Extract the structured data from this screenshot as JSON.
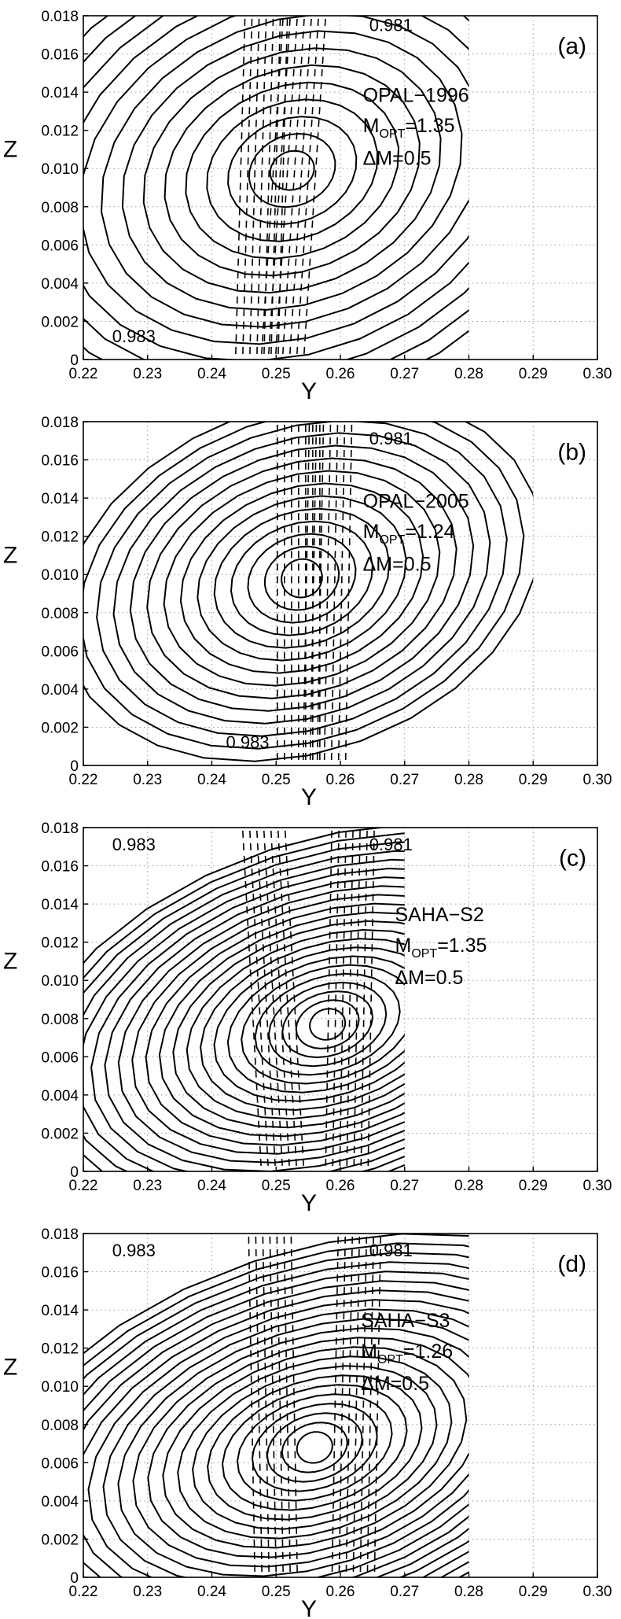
{
  "chart_data": [
    {
      "type": "line",
      "panel_letter": "(a)",
      "model": "OPAL−1996",
      "m_opt_symbol": "M",
      "m_opt_subscript": "OPT",
      "m_opt_value": "=1.35",
      "delta_m": "ΔM=0.5",
      "xlabel": "Y",
      "ylabel": "Z",
      "xlim": [
        0.22,
        0.3
      ],
      "ylim": [
        0,
        0.018
      ],
      "grid": true,
      "x_ticks": [
        "0.22",
        "0.23",
        "0.24",
        "0.25",
        "0.26",
        "0.27",
        "0.28",
        "0.29",
        "0.30"
      ],
      "y_ticks": [
        "0",
        "0.002",
        "0.004",
        "0.006",
        "0.008",
        "0.010",
        "0.012",
        "0.014",
        "0.016",
        "0.018"
      ],
      "contour_region_x": [
        0.22,
        0.28
      ],
      "contours": {
        "center": [
          0.2525,
          0.0099
        ],
        "rotation_deg": -22,
        "count": 14,
        "a_min": 0.0035,
        "a_step": 0.0034,
        "b_min": 0.001,
        "b_step": 0.00085
      },
      "dashed_isolines": [
        {
          "label": "0.981",
          "label_pos": [
            0.2645,
            0.0172
          ],
          "top": [
            0.2545,
            0.0185
          ],
          "bottom": [
            0.251,
            0.0
          ]
        },
        {
          "label": "0.983",
          "label_pos": [
            0.2245,
            0.0009
          ],
          "top": [
            0.2485,
            0.0185
          ],
          "bottom": [
            0.247,
            0.0
          ]
        }
      ]
    },
    {
      "type": "line",
      "panel_letter": "(b)",
      "model": "OPAL−2005",
      "m_opt_symbol": "M",
      "m_opt_subscript": "OPT",
      "m_opt_value": "=1.24",
      "delta_m": "ΔM=0.5",
      "xlabel": "Y",
      "ylabel": "Z",
      "xlim": [
        0.22,
        0.3
      ],
      "ylim": [
        0,
        0.018
      ],
      "grid": true,
      "x_ticks": [
        "0.22",
        "0.23",
        "0.24",
        "0.25",
        "0.26",
        "0.27",
        "0.28",
        "0.29",
        "0.30"
      ],
      "y_ticks": [
        "0",
        "0.002",
        "0.004",
        "0.006",
        "0.008",
        "0.010",
        "0.012",
        "0.014",
        "0.016",
        "0.018"
      ],
      "contour_region_x": [
        0.22,
        0.29
      ],
      "contours": {
        "center": [
          0.254,
          0.0098
        ],
        "rotation_deg": -20,
        "count": 14,
        "a_min": 0.0032,
        "a_step": 0.0027,
        "b_min": 0.001,
        "b_step": 0.00062
      },
      "dashed_isolines": [
        {
          "label": "0.981",
          "label_pos": [
            0.2645,
            0.0168
          ],
          "top": [
            0.2585,
            0.0185
          ],
          "bottom": [
            0.2575,
            0.0
          ]
        },
        {
          "label": "0.983",
          "label_pos": [
            0.2422,
            0.0009
          ],
          "top": [
            0.2535,
            0.0185
          ],
          "bottom": [
            0.2535,
            0.0
          ]
        }
      ]
    },
    {
      "type": "line",
      "panel_letter": "(c)",
      "model": "SAHA−S2",
      "m_opt_symbol": "M",
      "m_opt_subscript": "OPT",
      "m_opt_value": "=1.35",
      "delta_m": "ΔM=0.5",
      "xlabel": "Y",
      "ylabel": "Z",
      "xlim": [
        0.22,
        0.3
      ],
      "ylim": [
        0,
        0.018
      ],
      "grid": true,
      "x_ticks": [
        "0.22",
        "0.23",
        "0.24",
        "0.25",
        "0.26",
        "0.27",
        "0.28",
        "0.29",
        "0.30"
      ],
      "y_ticks": [
        "0",
        "0.002",
        "0.004",
        "0.006",
        "0.008",
        "0.010",
        "0.012",
        "0.014",
        "0.016",
        "0.018"
      ],
      "contour_region_x": [
        0.22,
        0.27
      ],
      "contours": {
        "center": [
          0.258,
          0.0077
        ],
        "rotation_deg": -18,
        "count": 22,
        "a_min": 0.0028,
        "a_step": 0.0022,
        "b_min": 0.0008,
        "b_step": 0.00042
      },
      "dashed_isolines": [
        {
          "label": "0.981",
          "label_pos": [
            0.2645,
            0.0168
          ],
          "top": [
            0.262,
            0.0185
          ],
          "bottom": [
            0.261,
            0.0
          ]
        },
        {
          "label": "0.983",
          "label_pos": [
            0.2245,
            0.0168
          ],
          "top": [
            0.248,
            0.0185
          ],
          "bottom": [
            0.251,
            0.0
          ]
        }
      ]
    },
    {
      "type": "line",
      "panel_letter": "(d)",
      "model": "SAHA−S3",
      "m_opt_symbol": "M",
      "m_opt_subscript": "OPT",
      "m_opt_value": "=1.26",
      "delta_m": "ΔM=0.5",
      "xlabel": "Y",
      "ylabel": "Z",
      "xlim": [
        0.22,
        0.3
      ],
      "ylim": [
        0,
        0.018
      ],
      "grid": true,
      "x_ticks": [
        "0.22",
        "0.23",
        "0.24",
        "0.25",
        "0.26",
        "0.27",
        "0.28",
        "0.29",
        "0.30"
      ],
      "y_ticks": [
        "0",
        "0.002",
        "0.004",
        "0.006",
        "0.008",
        "0.010",
        "0.012",
        "0.014",
        "0.016",
        "0.018"
      ],
      "contour_region_x": [
        0.22,
        0.28
      ],
      "contours": {
        "center": [
          0.256,
          0.0068
        ],
        "rotation_deg": -18,
        "count": 22,
        "a_min": 0.0028,
        "a_step": 0.0024,
        "b_min": 0.0008,
        "b_step": 0.00045
      },
      "dashed_isolines": [
        {
          "label": "0.981",
          "label_pos": [
            0.2645,
            0.0168
          ],
          "top": [
            0.263,
            0.0185
          ],
          "bottom": [
            0.262,
            0.0
          ]
        },
        {
          "label": "0.983",
          "label_pos": [
            0.2245,
            0.0168
          ],
          "top": [
            0.249,
            0.0185
          ],
          "bottom": [
            0.25,
            0.0
          ]
        }
      ]
    }
  ]
}
